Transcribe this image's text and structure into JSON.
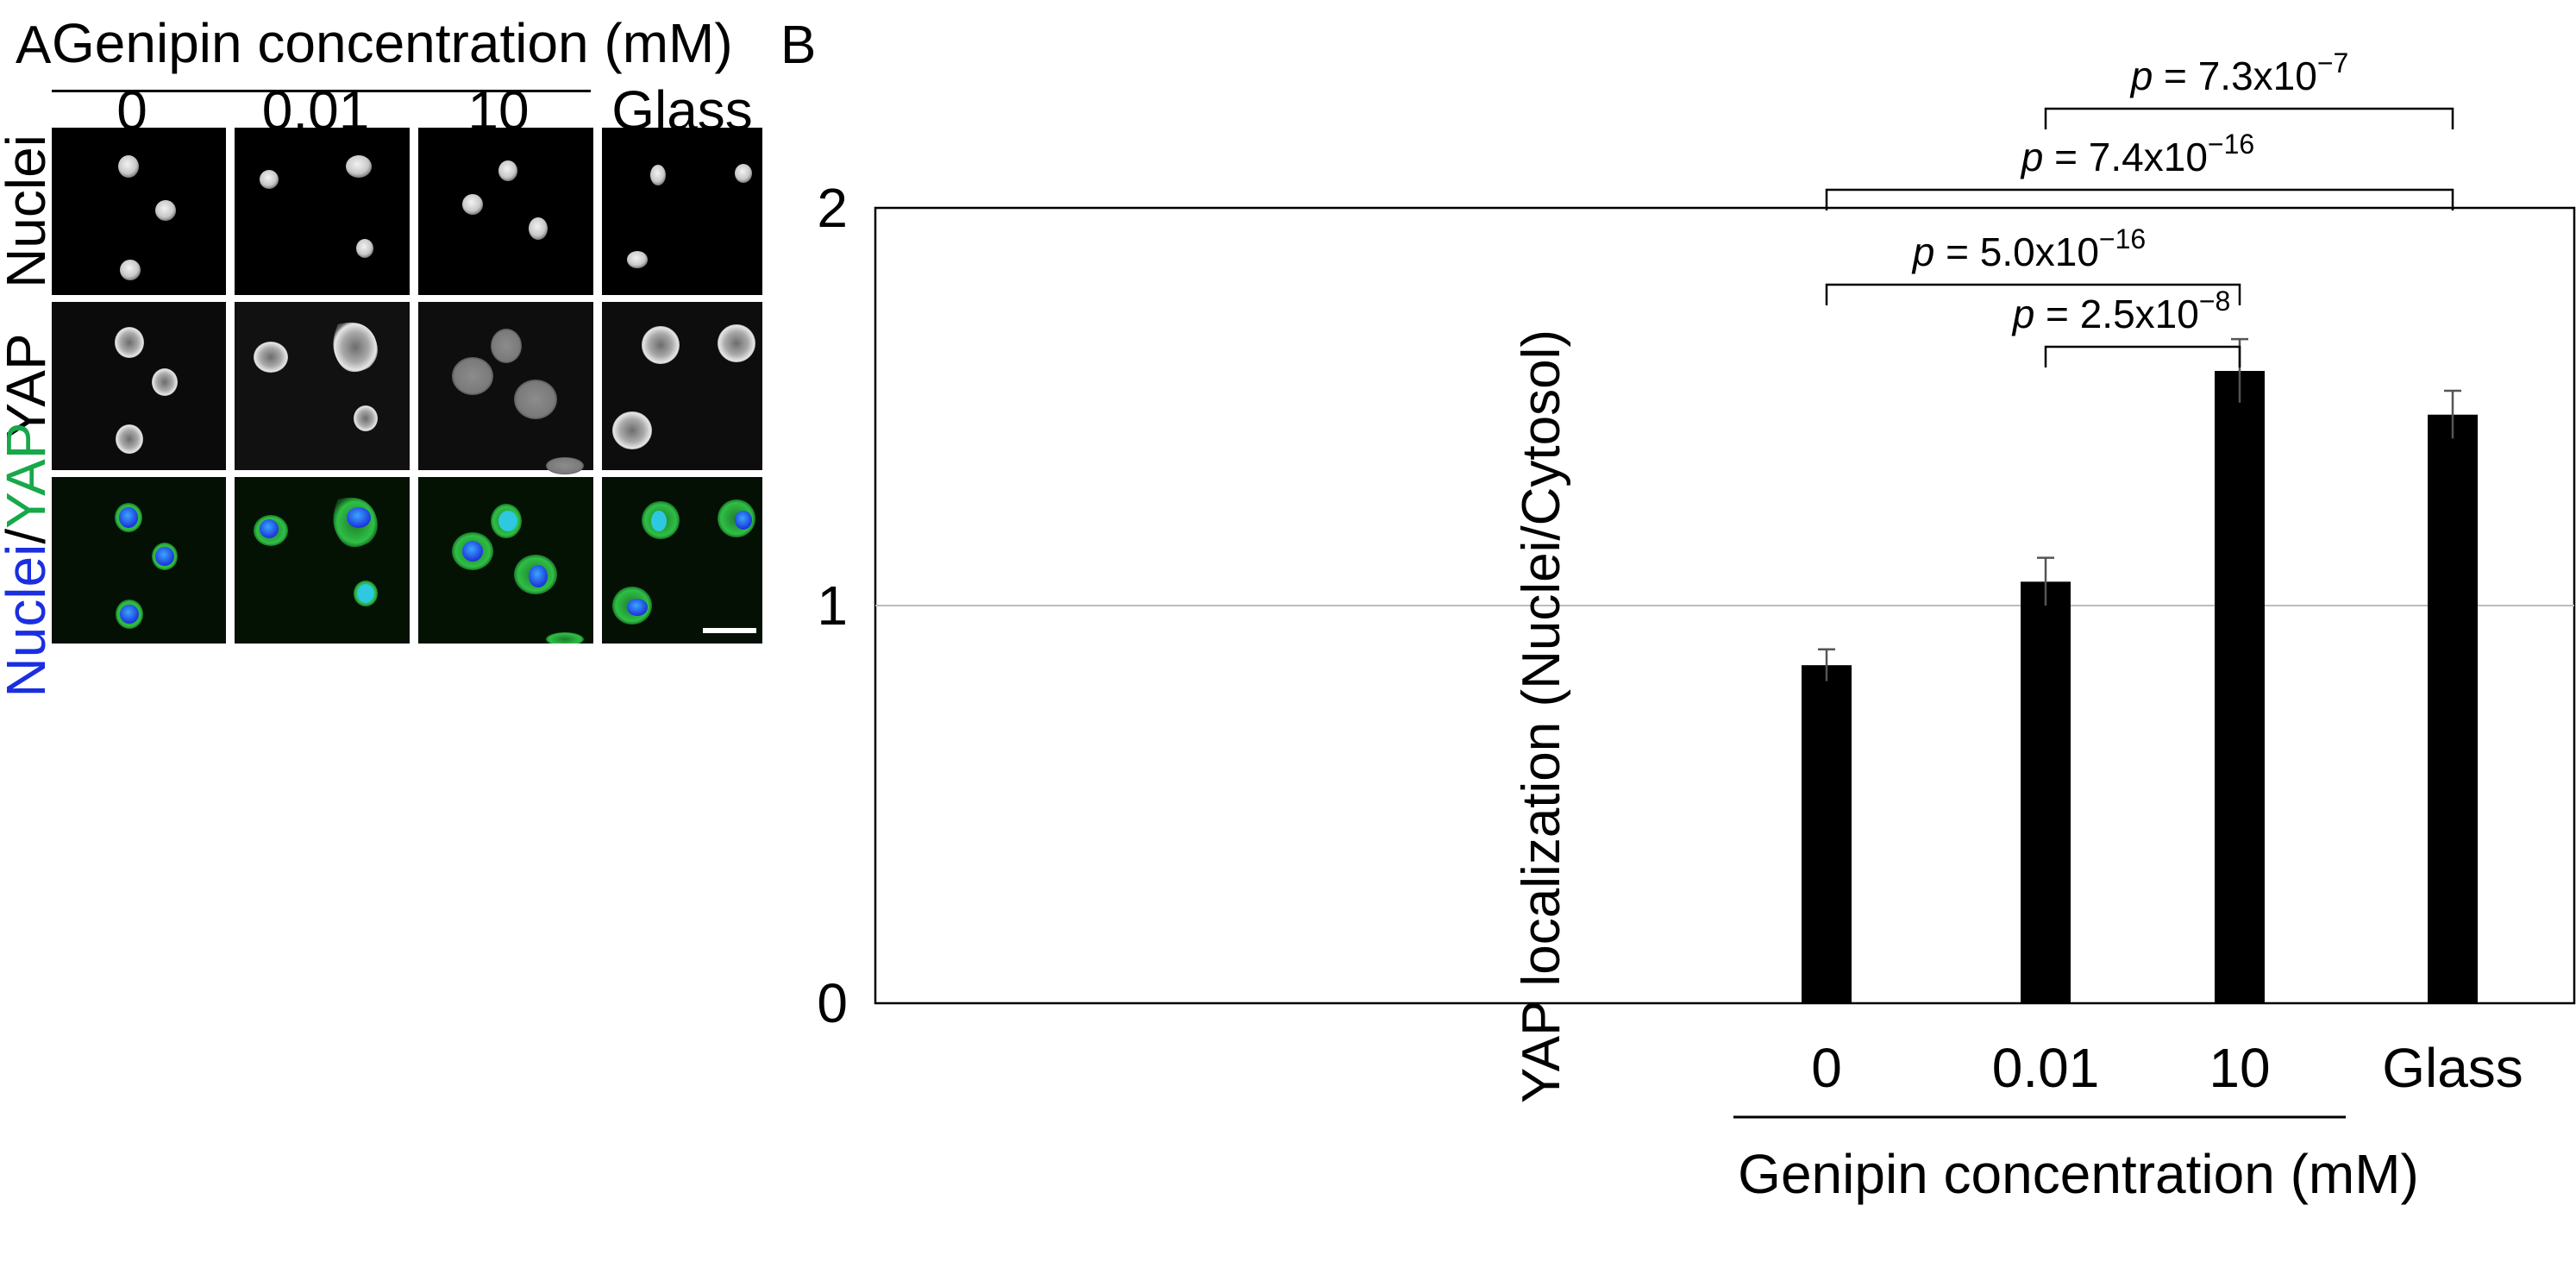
{
  "panel_a": {
    "letter": "A",
    "header": "Genipin concentration (mM)",
    "columns": [
      "0",
      "0.01",
      "10",
      "Glass"
    ],
    "rows": [
      "Nuclei",
      "YAP"
    ],
    "merge_label": {
      "first": "Nuclei",
      "sep": "/",
      "second": "YAP"
    },
    "colors": {
      "nuclei": "#1a2fe0",
      "yap": "#17a84a"
    }
  },
  "panel_b": {
    "letter": "B"
  },
  "chart_data": {
    "type": "bar",
    "categories": [
      "0",
      "0.01",
      "10",
      "Glass"
    ],
    "values": [
      0.85,
      1.06,
      1.59,
      1.48
    ],
    "errors": [
      0.04,
      0.06,
      0.08,
      0.06
    ],
    "ylabel": "YAP localization (Nuclei/Cytosol)",
    "xlabel": "Genipin concentration (mM)",
    "ylim": [
      0,
      2
    ],
    "yticks": [
      "0",
      "1",
      "2"
    ],
    "reference_line": 1,
    "bar_color": "#000000",
    "significance": [
      {
        "from": 0,
        "to": 2,
        "p": "p",
        "eq": " = 5.0x10",
        "exp": "−16"
      },
      {
        "from": 1,
        "to": 2,
        "p": "p",
        "eq": " = 2.5x10",
        "exp": "−8"
      },
      {
        "from": 0,
        "to": 3,
        "p": "p",
        "eq": " = 7.4x10",
        "exp": "−16"
      },
      {
        "from": 1,
        "to": 3,
        "p": "p",
        "eq": " = 7.3x10",
        "exp": "−7"
      }
    ]
  }
}
